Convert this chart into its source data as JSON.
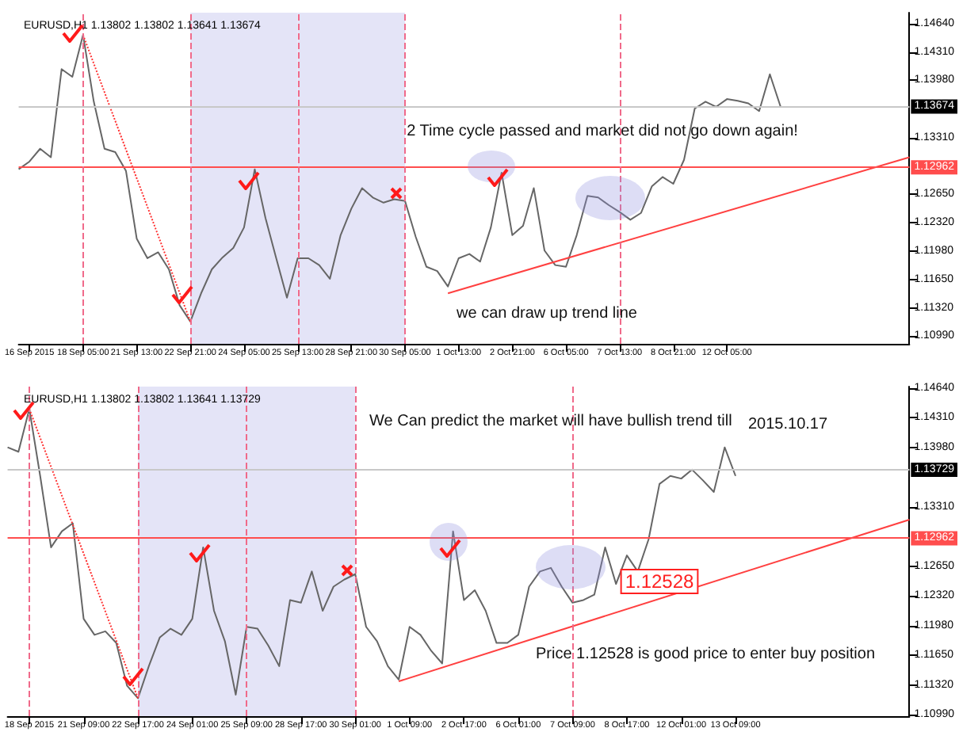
{
  "chart_data": [
    {
      "type": "line",
      "title": "EURUSD,H1 1.13802 1.13802 1.13641 1.13674",
      "categories": [
        null,
        "16 Sep 2015",
        null,
        null,
        null,
        null,
        "18 Sep 05:00",
        null,
        null,
        null,
        null,
        "21 Sep 13:00",
        null,
        null,
        null,
        null,
        "22 Sep 21:00",
        null,
        null,
        null,
        null,
        "24 Sep 05:00",
        null,
        null,
        null,
        null,
        "25 Sep 13:00",
        null,
        null,
        null,
        null,
        "28 Sep 21:00",
        null,
        null,
        null,
        null,
        "30 Sep 05:00",
        null,
        null,
        null,
        null,
        "1 Oct 13:00",
        null,
        null,
        null,
        null,
        "2 Oct 21:00",
        null,
        null,
        null,
        null,
        "6 Oct 05:00",
        null,
        null,
        null,
        null,
        "7 Oct 13:00",
        null,
        null,
        null,
        null,
        "8 Oct 21:00",
        null,
        null,
        null,
        null,
        "12 Oct 05:00",
        null,
        null,
        null,
        null,
        null,
        null,
        null,
        null,
        null,
        null,
        null,
        null,
        null,
        null,
        null,
        null,
        null
      ],
      "series": [
        {
          "color": "#666666",
          "values": [
            1.1294,
            1.1303,
            1.1318,
            1.1308,
            1.1411,
            1.1402,
            1.1451,
            1.1373,
            1.1318,
            1.1314,
            1.1292,
            1.1213,
            1.119,
            1.1197,
            1.1177,
            1.1135,
            1.1116,
            1.1149,
            1.1177,
            1.1191,
            1.1202,
            1.1226,
            1.1294,
            1.1237,
            1.119,
            1.1144,
            1.119,
            1.119,
            1.1182,
            1.1166,
            1.1217,
            1.1248,
            1.1272,
            1.1261,
            1.1255,
            1.1259,
            1.1257,
            1.1215,
            1.118,
            1.1175,
            1.1157,
            1.119,
            1.1195,
            1.1186,
            1.1226,
            1.129,
            1.1217,
            1.1228,
            1.1272,
            1.1199,
            1.1182,
            1.118,
            1.1217,
            1.1263,
            1.1261,
            1.1252,
            1.1244,
            1.1235,
            1.1243,
            1.1274,
            1.1285,
            1.1277,
            1.1305,
            1.1365,
            1.1373,
            1.1367,
            1.1376,
            1.1374,
            1.1371,
            1.1362,
            1.1405,
            1.1367,
            null,
            null,
            null,
            null,
            null,
            null,
            null,
            null,
            null,
            null,
            null,
            null
          ]
        },
        {
          "color": "#ff4040",
          "values": [
            null,
            null,
            null,
            null,
            null,
            null,
            null,
            null,
            null,
            null,
            null,
            null,
            null,
            null,
            null,
            null,
            null,
            null,
            null,
            null,
            null,
            null,
            null,
            null,
            null,
            null,
            null,
            null,
            null,
            null,
            null,
            null,
            null,
            null,
            null,
            null,
            null,
            null,
            null,
            null,
            1.1149,
            null,
            null,
            null,
            null,
            null,
            null,
            null,
            null,
            null,
            null,
            null,
            null,
            null,
            null,
            null,
            null,
            null,
            null,
            null,
            null,
            null,
            null,
            null,
            null,
            null,
            null,
            null,
            null,
            null,
            null,
            null,
            null,
            null,
            null,
            null,
            null,
            null,
            null,
            null,
            null,
            null,
            null,
            1.1308
          ]
        },
        {
          "color": "#ff3030",
          "line_style": "dotted",
          "values": [
            null,
            null,
            null,
            null,
            null,
            null,
            1.1451,
            null,
            null,
            null,
            null,
            null,
            null,
            null,
            null,
            null,
            1.1116,
            null,
            null,
            null,
            null,
            null,
            null,
            null,
            null,
            null,
            null,
            null,
            null,
            null,
            null,
            null,
            null,
            null,
            null,
            null,
            null,
            null,
            null,
            null,
            null,
            null,
            null,
            null,
            null,
            null,
            null,
            null,
            null,
            null,
            null,
            null,
            null,
            null,
            null,
            null,
            null,
            null,
            null,
            null,
            null,
            null,
            null,
            null,
            null,
            null,
            null,
            null,
            null,
            null,
            null,
            null,
            null,
            null,
            null,
            null,
            null,
            null,
            null,
            null,
            null,
            null,
            null,
            null
          ]
        }
      ],
      "ylim": [
        1.109,
        1.1477
      ],
      "yticks": [
        {
          "value": 1.1099,
          "label": "1.10990"
        },
        {
          "value": 1.1132,
          "label": "1.11320"
        },
        {
          "value": 1.1165,
          "label": "1.11650"
        },
        {
          "value": 1.1198,
          "label": "1.11980"
        },
        {
          "value": 1.1232,
          "label": "1.12320"
        },
        {
          "value": 1.1265,
          "label": "1.12650"
        },
        {
          "value": 1.1331,
          "label": "1.13310"
        },
        {
          "value": 1.1398,
          "label": "1.13980"
        },
        {
          "value": 1.1431,
          "label": "1.14310"
        },
        {
          "value": 1.1464,
          "label": "1.14640"
        }
      ],
      "ref_lines": [
        {
          "axis": "y",
          "value": 1.12962,
          "label": "1.12962",
          "color": "#ff4d4d"
        },
        {
          "axis": "y",
          "value": 1.13674,
          "label": "1.13674",
          "color": "#c8c8c8"
        },
        {
          "axis": "x",
          "value": "18 Sep 05:00",
          "label": null,
          "color": "#f06a8a",
          "line_style": "dashed"
        },
        {
          "axis": "x",
          "value": "22 Sep 21:00",
          "label": null,
          "color": "#f06a8a",
          "line_style": "dashed"
        },
        {
          "axis": "x",
          "value": "25 Sep 13:00",
          "label": null,
          "color": "#f06a8a",
          "line_style": "dashed"
        },
        {
          "axis": "x",
          "value": "30 Sep 05:00",
          "label": null,
          "color": "#f06a8a",
          "line_style": "dashed"
        },
        {
          "axis": "x",
          "value": "7 Oct 13:00",
          "label": null,
          "color": "#f06a8a",
          "line_style": "dashed"
        }
      ],
      "bands": [
        {
          "axis": "x",
          "from": "22 Sep 21:00",
          "to": "25 Sep 13:00",
          "label": null,
          "color": "#e4e4f7"
        },
        {
          "axis": "x",
          "from": "25 Sep 13:00",
          "to": "30 Sep 05:00",
          "label": null,
          "color": "#e4e4f7"
        }
      ],
      "annotations": [
        "2 Time cycle passed and market did not go down again!",
        "we can draw up trend line"
      ],
      "grid": false
    },
    {
      "type": "line",
      "title": "EURUSD,H1 1.13802 1.13802 1.13641 1.13729",
      "categories": [
        null,
        null,
        "18 Sep 2015",
        null,
        null,
        null,
        null,
        "21 Sep 09:00",
        null,
        null,
        null,
        null,
        "22 Sep 17:00",
        null,
        null,
        null,
        null,
        "24 Sep 01:00",
        null,
        null,
        null,
        null,
        "25 Sep 09:00",
        null,
        null,
        null,
        null,
        "28 Sep 17:00",
        null,
        null,
        null,
        null,
        "30 Sep 01:00",
        null,
        null,
        null,
        null,
        "1 Oct 09:00",
        null,
        null,
        null,
        null,
        "2 Oct 17:00",
        null,
        null,
        null,
        null,
        "6 Oct 01:00",
        null,
        null,
        null,
        null,
        "7 Oct 09:00",
        null,
        null,
        null,
        null,
        "8 Oct 17:00",
        null,
        null,
        null,
        null,
        "12 Oct 01:00",
        null,
        null,
        null,
        null,
        "13 Oct 09:00",
        null,
        null,
        null,
        null,
        null,
        null,
        null,
        null,
        null,
        null,
        null,
        null,
        null,
        null,
        null,
        null
      ],
      "series": [
        {
          "color": "#666666",
          "values": [
            1.1398,
            1.1393,
            1.1441,
            1.1366,
            1.1286,
            1.1304,
            1.1313,
            1.1206,
            1.1188,
            1.1192,
            1.1179,
            1.1131,
            1.1117,
            1.1153,
            1.1185,
            1.1195,
            1.1188,
            1.1206,
            1.1286,
            1.1215,
            1.1181,
            1.1121,
            1.1197,
            1.1195,
            1.1176,
            1.1153,
            1.1227,
            1.1224,
            1.1259,
            1.1215,
            1.1242,
            1.125,
            1.1256,
            1.1197,
            1.1181,
            1.1153,
            1.1138,
            1.1197,
            1.1188,
            1.117,
            1.1156,
            1.1304,
            1.1227,
            1.1238,
            1.1215,
            1.1179,
            1.1179,
            1.1188,
            1.1242,
            1.1259,
            1.1263,
            1.1242,
            1.1224,
            1.1227,
            1.1233,
            1.1286,
            1.1245,
            1.1277,
            1.1259,
            1.1295,
            1.1357,
            1.1366,
            1.1363,
            1.1373,
            1.1361,
            1.1348,
            1.1398,
            1.1366,
            null,
            null,
            null,
            null,
            null,
            null,
            null,
            null,
            null,
            null,
            null,
            null,
            null,
            null,
            null,
            null
          ]
        },
        {
          "color": "#ff4040",
          "values": [
            null,
            null,
            null,
            null,
            null,
            null,
            null,
            null,
            null,
            null,
            null,
            null,
            null,
            null,
            null,
            null,
            null,
            null,
            null,
            null,
            null,
            null,
            null,
            null,
            null,
            null,
            null,
            null,
            null,
            null,
            null,
            null,
            null,
            null,
            null,
            null,
            1.1136,
            null,
            null,
            null,
            null,
            null,
            null,
            null,
            null,
            null,
            null,
            null,
            null,
            null,
            null,
            null,
            null,
            null,
            null,
            null,
            null,
            null,
            null,
            null,
            null,
            null,
            null,
            null,
            null,
            null,
            null,
            null,
            null,
            null,
            null,
            null,
            null,
            null,
            null,
            null,
            null,
            null,
            null,
            null,
            null,
            null,
            null,
            1.1317
          ]
        },
        {
          "color": "#ff3030",
          "line_style": "dotted",
          "values": [
            null,
            null,
            1.1441,
            null,
            null,
            null,
            null,
            null,
            null,
            null,
            null,
            null,
            1.1117,
            null,
            null,
            null,
            null,
            null,
            null,
            null,
            null,
            null,
            null,
            null,
            null,
            null,
            null,
            null,
            null,
            null,
            null,
            null,
            null,
            null,
            null,
            null,
            null,
            null,
            null,
            null,
            null,
            null,
            null,
            null,
            null,
            null,
            null,
            null,
            null,
            null,
            null,
            null,
            null,
            null,
            null,
            null,
            null,
            null,
            null,
            null,
            null,
            null,
            null,
            null,
            null,
            null,
            null,
            null,
            null,
            null,
            null,
            null,
            null,
            null,
            null,
            null,
            null,
            null,
            null,
            null,
            null,
            null,
            null,
            null
          ]
        }
      ],
      "ylim": [
        1.1097,
        1.1466
      ],
      "yticks": [
        {
          "value": 1.1099,
          "label": "1.10990"
        },
        {
          "value": 1.1132,
          "label": "1.11320"
        },
        {
          "value": 1.1165,
          "label": "1.11650"
        },
        {
          "value": 1.1198,
          "label": "1.11980"
        },
        {
          "value": 1.1232,
          "label": "1.12320"
        },
        {
          "value": 1.1265,
          "label": "1.12650"
        },
        {
          "value": 1.1331,
          "label": "1.13310"
        },
        {
          "value": 1.1398,
          "label": "1.13980"
        },
        {
          "value": 1.1431,
          "label": "1.14310"
        },
        {
          "value": 1.1464,
          "label": "1.14640"
        }
      ],
      "ref_lines": [
        {
          "axis": "y",
          "value": 1.12962,
          "label": "1.12962",
          "color": "#ff4d4d"
        },
        {
          "axis": "y",
          "value": 1.13729,
          "label": "1.13729",
          "color": "#c8c8c8"
        },
        {
          "axis": "x",
          "value": "18 Sep 2015",
          "label": null,
          "color": "#f06a8a",
          "line_style": "dashed"
        },
        {
          "axis": "x",
          "value": "22 Sep 17:00",
          "label": null,
          "color": "#f06a8a",
          "line_style": "dashed"
        },
        {
          "axis": "x",
          "value": "25 Sep 09:00",
          "label": null,
          "color": "#f06a8a",
          "line_style": "dashed"
        },
        {
          "axis": "x",
          "value": "30 Sep 01:00",
          "label": null,
          "color": "#f06a8a",
          "line_style": "dashed"
        },
        {
          "axis": "x",
          "value": "7 Oct 09:00",
          "label": null,
          "color": "#f06a8a",
          "line_style": "dashed"
        }
      ],
      "bands": [
        {
          "axis": "x",
          "from": "22 Sep 17:00",
          "to": "25 Sep 09:00",
          "label": null,
          "color": "#e4e4f7"
        },
        {
          "axis": "x",
          "from": "25 Sep 09:00",
          "to": "30 Sep 01:00",
          "label": null,
          "color": "#e4e4f7"
        }
      ],
      "annotations": [
        "We Can predict the market will have bullish trend till",
        "2015.10.17",
        "Price 1.12528 is good price to enter buy position",
        "1.12528"
      ],
      "grid": false
    }
  ]
}
